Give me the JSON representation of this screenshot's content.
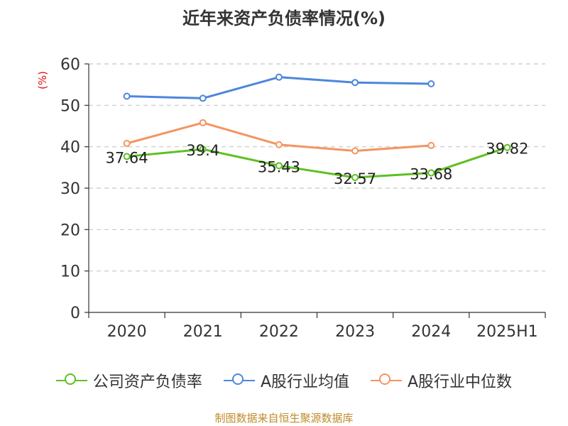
{
  "title": "近年来资产负债率情况(%)",
  "unit_label": "(%)",
  "source": "制图数据来自恒生聚源数据库",
  "chart_data": {
    "type": "line",
    "categories": [
      "2020",
      "2021",
      "2022",
      "2023",
      "2024",
      "2025H1"
    ],
    "ylim": [
      0,
      60
    ],
    "yticks": [
      0,
      10,
      20,
      30,
      40,
      50,
      60
    ],
    "grid": true,
    "legend_position": "bottom",
    "series": [
      {
        "name": "公司资产负债率",
        "color": "#5ec022",
        "values": [
          37.64,
          39.4,
          35.43,
          32.57,
          33.68,
          39.82
        ],
        "labels": [
          "37.64",
          "39.4",
          "35.43",
          "32.57",
          "33.68",
          "39.82"
        ]
      },
      {
        "name": "A股行业均值",
        "color": "#4d86dd",
        "values": [
          52.2,
          51.7,
          56.8,
          55.5,
          55.2,
          null
        ]
      },
      {
        "name": "A股行业中位数",
        "color": "#f59461",
        "values": [
          40.8,
          45.8,
          40.5,
          39.0,
          40.3,
          null
        ]
      }
    ]
  }
}
